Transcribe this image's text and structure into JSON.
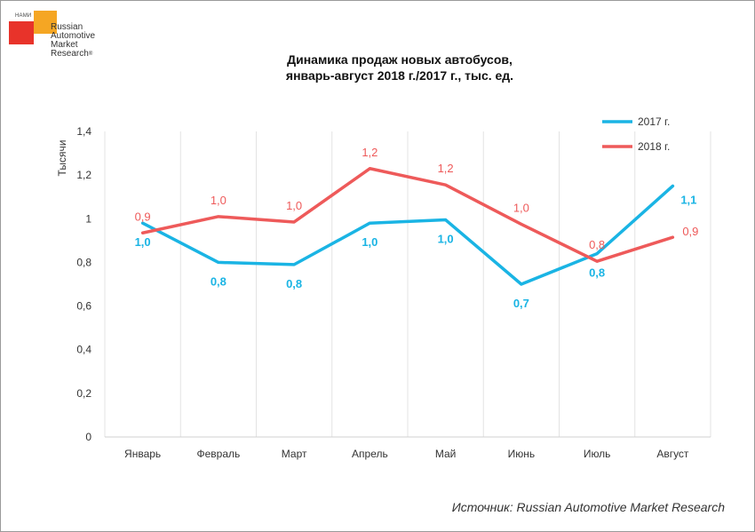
{
  "logo": {
    "nami": "НАМИ",
    "lines": [
      "Russian",
      "Automotive",
      "Market",
      "Research"
    ],
    "reg": "®"
  },
  "chart_data": {
    "type": "line",
    "title_line1": "Динамика продаж новых автобусов,",
    "title_line2": "январь-август 2018 г./2017 г., тыс. ед.",
    "ylabel": "Тысячи",
    "xlabel": "",
    "ylim": [
      0,
      1.4
    ],
    "yticks": [
      "0",
      "0,2",
      "0,4",
      "0,6",
      "0,8",
      "1",
      "1,2",
      "1,4"
    ],
    "ytick_values": [
      0,
      0.2,
      0.4,
      0.6,
      0.8,
      1.0,
      1.2,
      1.4
    ],
    "categories": [
      "Январь",
      "Февраль",
      "Март",
      "Апрель",
      "Май",
      "Июнь",
      "Июль",
      "Август"
    ],
    "series": [
      {
        "name": "2017 г.",
        "color": "#1ab4e4",
        "values": [
          0.98,
          0.8,
          0.79,
          0.98,
          0.995,
          0.7,
          0.84,
          1.15
        ],
        "labels": [
          "1,0",
          "0,8",
          "0,8",
          "1,0",
          "1,0",
          "0,7",
          "0,8",
          "1,1"
        ]
      },
      {
        "name": "2018 г.",
        "color": "#ee5a5a",
        "values": [
          0.935,
          1.01,
          0.985,
          1.23,
          1.155,
          0.975,
          0.805,
          0.915
        ],
        "labels": [
          "0,9",
          "1,0",
          "1,0",
          "1,2",
          "1,2",
          "1,0",
          "0,8",
          "0,9"
        ]
      }
    ],
    "legend_position": "top-right",
    "grid": "vertical"
  },
  "source": "Источник: Russian Automotive Market Research"
}
